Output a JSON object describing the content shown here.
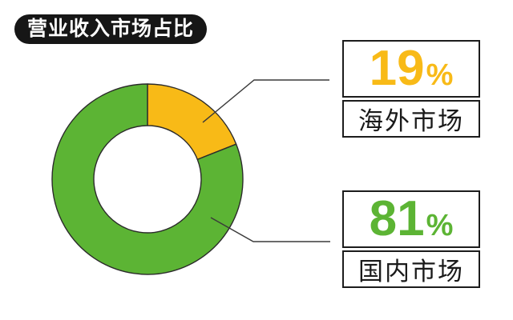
{
  "title": "营业收入市场占比",
  "colors": {
    "background": "#ffffff",
    "title_bg": "#161616",
    "title_text": "#ffffff",
    "box_border": "#1c1c1c",
    "label_text": "#1a1a1a",
    "leader_line": "#3a3a3a",
    "slice_outline": "#2b2b2b"
  },
  "chart_data": {
    "type": "pie",
    "subtype": "donut",
    "title": "营业收入市场占比",
    "direction": "clockwise",
    "start_angle_deg": 0,
    "inner_radius_ratio": 0.56,
    "grid": false,
    "legend_position": "right-callouts",
    "slices": [
      {
        "label": "海外市场",
        "value": 19,
        "unit": "%",
        "color": "#f8ba17"
      },
      {
        "label": "国内市场",
        "value": 81,
        "unit": "%",
        "color": "#5cb434"
      }
    ]
  }
}
